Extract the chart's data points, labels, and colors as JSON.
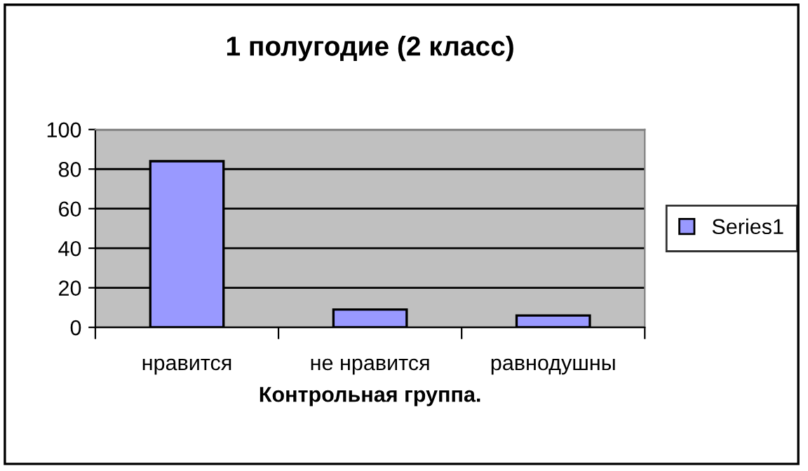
{
  "chart_data": {
    "type": "bar",
    "title": "1 полугодие (2 класс)",
    "xlabel": "Контрольная группа.",
    "categories": [
      "нравится",
      "не нравится",
      "равнодушны"
    ],
    "series": [
      {
        "name": "Series1",
        "color": "#9999ff",
        "values": [
          84,
          9,
          6
        ]
      }
    ],
    "ylim": [
      0,
      100
    ],
    "yticks": [
      0,
      20,
      40,
      60,
      80,
      100
    ],
    "grid": "y",
    "legend": "right"
  }
}
